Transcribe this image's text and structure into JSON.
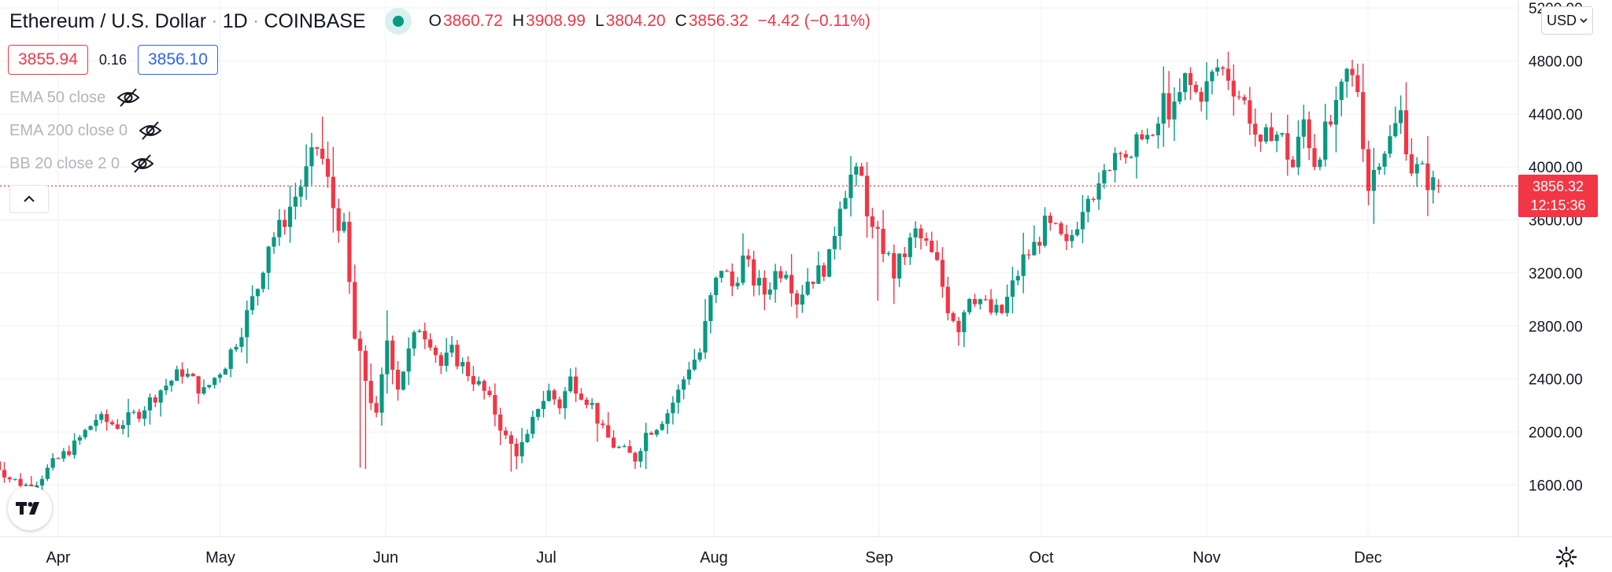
{
  "header": {
    "symbol": "Ethereum / U.S. Dollar",
    "interval": "1D",
    "exchange": "COINBASE",
    "ohlc": {
      "o_label": "O",
      "o_value": "3860.72",
      "h_label": "H",
      "h_value": "3908.99",
      "l_label": "L",
      "l_value": "3804.20",
      "c_label": "C",
      "c_value": "3856.32",
      "change": "−4.42 (−0.11%)"
    }
  },
  "prices": {
    "sell": "3855.94",
    "spread": "0.16",
    "buy": "3856.10"
  },
  "indicators": [
    {
      "label": "EMA 50 close"
    },
    {
      "label": "EMA 200 close 0"
    },
    {
      "label": "BB 20 close 2 0"
    }
  ],
  "currency": {
    "label": "USD"
  },
  "last_price": {
    "price": "3856.32",
    "countdown": "12:15:36"
  },
  "icons": {
    "status": "market-open-dot-icon",
    "eye_off": "eye-off-icon",
    "collapse": "chevron-up-icon",
    "currency_dropdown": "chevron-down-icon",
    "logo": "tradingview-logo-icon",
    "settings": "gear-icon"
  },
  "colors": {
    "up": "#089981",
    "down": "#f23645",
    "buy": "#2962ff"
  },
  "chart_data": {
    "type": "candlestick",
    "x_labels": [
      "Apr",
      "May",
      "Jun",
      "Jul",
      "Aug",
      "Sep",
      "Oct",
      "Nov",
      "Dec"
    ],
    "y_ticks": [
      "1600.00",
      "2000.00",
      "2400.00",
      "2800.00",
      "3200.00",
      "3600.00",
      "4000.00",
      "4400.00",
      "4800.00",
      "5200.00"
    ],
    "ylim": [
      1210,
      5260
    ],
    "last_price_line": 3856.32,
    "key_prices": [
      {
        "date": "late March",
        "low": 1550
      },
      {
        "date": "mid May",
        "high": 4380
      },
      {
        "date": "late May",
        "low": 1720
      },
      {
        "date": "late June",
        "low": 1700
      },
      {
        "date": "mid July",
        "low": 1720
      },
      {
        "date": "early September",
        "high": 4030
      },
      {
        "date": "late September",
        "low": 2650
      },
      {
        "date": "early November",
        "high": 4870
      },
      {
        "date": "early December",
        "low": 3570
      },
      {
        "date": "mid December",
        "close": 3856.32
      }
    ]
  }
}
